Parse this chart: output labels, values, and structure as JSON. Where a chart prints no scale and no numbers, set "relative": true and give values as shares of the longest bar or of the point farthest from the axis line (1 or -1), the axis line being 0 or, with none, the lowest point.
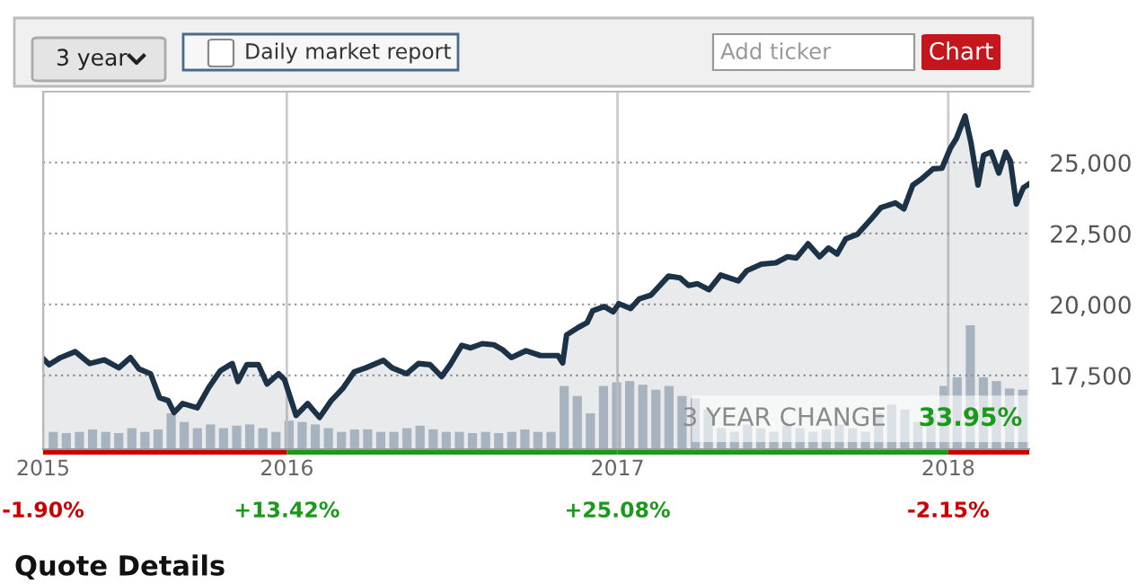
{
  "chart_data": [
    {
      "type": "area",
      "x": [
        2015.263,
        2015.281,
        2015.316,
        2015.36,
        2015.404,
        2015.448,
        2015.492,
        2015.527,
        2015.553,
        2015.588,
        2015.615,
        2015.641,
        2015.659,
        2015.685,
        2015.729,
        2015.764,
        2015.799,
        2015.835,
        2015.852,
        2015.879,
        2015.914,
        2015.94,
        2015.975,
        2015.993,
        2016.028,
        2016.063,
        2016.099,
        2016.134,
        2016.169,
        2016.204,
        2016.239,
        2016.292,
        2016.318,
        2016.362,
        2016.398,
        2016.433,
        2016.468,
        2016.494,
        2016.529,
        2016.556,
        2016.591,
        2016.626,
        2016.652,
        2016.679,
        2016.723,
        2016.767,
        2016.82,
        2016.834,
        2016.846,
        2016.881,
        2016.908,
        2016.925,
        2016.96,
        2016.987,
        2017.004,
        2017.04,
        2017.066,
        2017.101,
        2017.154,
        2017.189,
        2017.215,
        2017.242,
        2017.277,
        2017.312,
        2017.365,
        2017.391,
        2017.435,
        2017.479,
        2017.514,
        2017.541,
        2017.576,
        2017.611,
        2017.638,
        2017.664,
        2017.69,
        2017.726,
        2017.77,
        2017.796,
        2017.84,
        2017.866,
        2017.893,
        2017.919,
        2017.954,
        2017.981,
        2018.007,
        2018.025,
        2018.051,
        2018.069,
        2018.09,
        2018.107,
        2018.13,
        2018.153,
        2018.174,
        2018.188,
        2018.206,
        2018.227,
        2018.245
      ],
      "series": [
        {
          "color": "#1c3347",
          "values": [
            18090,
            17880,
            18130,
            18340,
            17920,
            18050,
            17770,
            18130,
            17730,
            17560,
            16720,
            16610,
            16190,
            16510,
            16360,
            17080,
            17670,
            17920,
            17290,
            17880,
            17880,
            17200,
            17560,
            17350,
            16090,
            16510,
            16020,
            16610,
            17040,
            17630,
            17770,
            18030,
            17770,
            17560,
            17920,
            17880,
            17460,
            17880,
            18560,
            18470,
            18620,
            18580,
            18410,
            18130,
            18370,
            18200,
            18200,
            17940,
            18930,
            19190,
            19360,
            19780,
            19930,
            19740,
            20030,
            19860,
            20200,
            20330,
            21000,
            20940,
            20670,
            20730,
            20520,
            21040,
            20830,
            21190,
            21420,
            21470,
            21680,
            21640,
            22140,
            21680,
            21990,
            21780,
            22310,
            22480,
            23050,
            23410,
            23580,
            23370,
            24210,
            24420,
            24780,
            24800,
            25520,
            25860,
            26640,
            25690,
            24210,
            25260,
            25370,
            24630,
            25370,
            25050,
            23540,
            24110,
            24250
          ]
        }
      ],
      "xlim": [
        2015.263,
        2018.245
      ],
      "xticks": [
        {
          "value": 2015.263,
          "label": "2015"
        },
        2016,
        2017,
        2018
      ],
      "ylim": [
        14900,
        27500
      ],
      "yticks": [
        {
          "value": 17500,
          "label": "17,500"
        },
        {
          "value": 20000,
          "label": "20,000"
        },
        {
          "value": 22500,
          "label": "22,500"
        },
        {
          "value": 25000,
          "label": "25,000"
        }
      ],
      "grid": true,
      "annotations": [
        "-1.90%",
        "+13.42%",
        "+25.08%",
        "-2.15%",
        "3 YEAR CHANGE",
        "33.95%",
        "3 year",
        "Daily market report",
        "Add ticker",
        "Chart",
        "Quote Details"
      ]
    },
    {
      "type": "bar",
      "relative": true,
      "color": "#b7c2cd",
      "categories": [
        null,
        null,
        null,
        null,
        null,
        null,
        null,
        null,
        null,
        null,
        null,
        null,
        null,
        null,
        null,
        null,
        null,
        null,
        null,
        null,
        null,
        null,
        null,
        null,
        null,
        null,
        null,
        null,
        null,
        null,
        null,
        null,
        null,
        null,
        null,
        null,
        null,
        null,
        null,
        null,
        null,
        null,
        null,
        null,
        null,
        null,
        null,
        null,
        null,
        null,
        null,
        null,
        null,
        null,
        null,
        null,
        null,
        null,
        null,
        null,
        null,
        null,
        null,
        null,
        null,
        null,
        null,
        null,
        null,
        null,
        null,
        null,
        null,
        null,
        null
      ],
      "values": [
        0.14,
        0.13,
        0.14,
        0.16,
        0.14,
        0.13,
        0.17,
        0.14,
        0.16,
        0.29,
        0.22,
        0.17,
        0.2,
        0.17,
        0.19,
        0.2,
        0.17,
        0.14,
        0.23,
        0.22,
        0.2,
        0.17,
        0.14,
        0.16,
        0.16,
        0.14,
        0.14,
        0.17,
        0.19,
        0.16,
        0.14,
        0.14,
        0.13,
        0.14,
        0.13,
        0.14,
        0.16,
        0.14,
        0.14,
        0.51,
        0.43,
        0.29,
        0.51,
        0.54,
        0.55,
        0.52,
        0.48,
        0.51,
        0.43,
        0.41,
        0.32,
        0.17,
        0.14,
        0.2,
        0.17,
        0.14,
        0.19,
        0.17,
        0.14,
        0.16,
        0.2,
        0.17,
        0.14,
        0.29,
        0.36,
        0.32,
        0.22,
        0.29,
        0.51,
        0.58,
        1,
        0.58,
        0.55,
        0.49,
        0.48
      ]
    }
  ]
}
